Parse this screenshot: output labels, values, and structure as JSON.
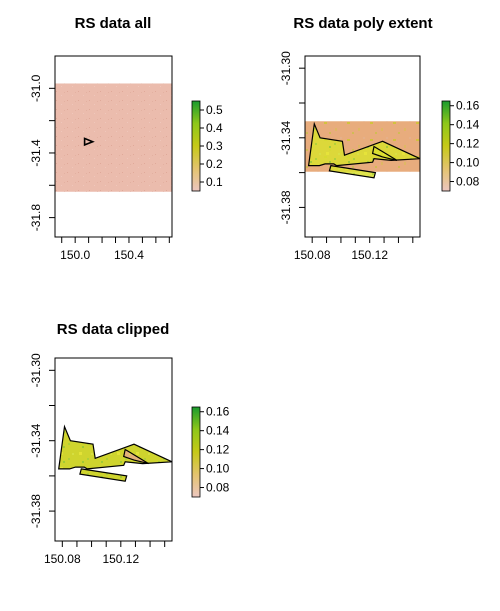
{
  "chart_data": [
    {
      "type": "heatmap",
      "title": "RS data all",
      "xlabel": "",
      "ylabel": "",
      "x_ticks": [
        "150.0",
        "150.4"
      ],
      "y_ticks": [
        "-31.0",
        "-31.4",
        "-31.8"
      ],
      "xlim": [
        149.85,
        150.72
      ],
      "ylim": [
        -31.92,
        -30.8
      ],
      "raster_extent": {
        "x": [
          149.85,
          150.72
        ],
        "y": [
          -31.64,
          -30.97
        ]
      },
      "polygon_outline": [
        [
          150.07,
          -31.31
        ],
        [
          150.07,
          -31.35
        ],
        [
          150.13,
          -31.33
        ]
      ],
      "legend": {
        "ticks": [
          "0.1",
          "0.2",
          "0.3",
          "0.4",
          "0.5"
        ],
        "range": [
          0.05,
          0.55
        ],
        "placement": "right",
        "colors": [
          "#ecc6c0",
          "#e3c36e",
          "#c6c918",
          "#8ec71a",
          "#1a9b2f"
        ]
      },
      "raster_color": "#ebbcad"
    },
    {
      "type": "heatmap",
      "title": "RS data poly extent",
      "xlabel": "",
      "ylabel": "",
      "x_ticks": [
        "150.08",
        "150.12"
      ],
      "y_ticks": [
        "-31.30",
        "-31.34",
        "-31.38"
      ],
      "xlim": [
        150.075,
        150.155
      ],
      "ylim": [
        -31.397,
        -31.293
      ],
      "raster_extent": {
        "x": [
          150.075,
          150.155
        ],
        "y": [
          -31.3595,
          -31.3305
        ]
      },
      "polygons": [
        [
          [
            150.0775,
            -31.356
          ],
          [
            150.0815,
            -31.332
          ],
          [
            150.0855,
            -31.34
          ],
          [
            150.101,
            -31.342
          ],
          [
            150.1025,
            -31.35
          ],
          [
            150.129,
            -31.342
          ],
          [
            150.155,
            -31.352
          ],
          [
            150.135,
            -31.353
          ],
          [
            150.123,
            -31.352
          ],
          [
            150.122,
            -31.354
          ],
          [
            150.097,
            -31.356
          ],
          [
            150.095,
            -31.355
          ],
          [
            150.089,
            -31.355
          ],
          [
            150.085,
            -31.356
          ]
        ],
        [
          [
            150.123,
            -31.345
          ],
          [
            150.139,
            -31.353
          ],
          [
            150.129,
            -31.351
          ],
          [
            150.122,
            -31.349
          ]
        ],
        [
          [
            150.093,
            -31.356
          ],
          [
            150.124,
            -31.36
          ],
          [
            150.123,
            -31.363
          ],
          [
            150.092,
            -31.359
          ]
        ]
      ],
      "legend": {
        "ticks": [
          "0.08",
          "0.10",
          "0.12",
          "0.14",
          "0.16"
        ],
        "range": [
          0.07,
          0.165
        ],
        "placement": "right",
        "colors": [
          "#ecc6c0",
          "#e3c36e",
          "#c6c918",
          "#8ec71a",
          "#1a9b2f"
        ]
      }
    },
    {
      "type": "heatmap",
      "title": "RS data clipped",
      "xlabel": "",
      "ylabel": "",
      "x_ticks": [
        "150.08",
        "150.12"
      ],
      "y_ticks": [
        "-31.30",
        "-31.34",
        "-31.38"
      ],
      "xlim": [
        150.075,
        150.155
      ],
      "ylim": [
        -31.397,
        -31.293
      ],
      "polygons": [
        [
          [
            150.0775,
            -31.356
          ],
          [
            150.0815,
            -31.332
          ],
          [
            150.0855,
            -31.34
          ],
          [
            150.101,
            -31.342
          ],
          [
            150.1025,
            -31.35
          ],
          [
            150.129,
            -31.342
          ],
          [
            150.155,
            -31.352
          ],
          [
            150.135,
            -31.353
          ],
          [
            150.123,
            -31.352
          ],
          [
            150.122,
            -31.354
          ],
          [
            150.097,
            -31.356
          ],
          [
            150.095,
            -31.355
          ],
          [
            150.089,
            -31.355
          ],
          [
            150.085,
            -31.356
          ]
        ],
        [
          [
            150.123,
            -31.345
          ],
          [
            150.139,
            -31.353
          ],
          [
            150.129,
            -31.351
          ],
          [
            150.122,
            -31.349
          ]
        ],
        [
          [
            150.093,
            -31.356
          ],
          [
            150.124,
            -31.36
          ],
          [
            150.123,
            -31.363
          ],
          [
            150.092,
            -31.359
          ]
        ]
      ],
      "legend": {
        "ticks": [
          "0.08",
          "0.10",
          "0.12",
          "0.14",
          "0.16"
        ],
        "range": [
          0.07,
          0.165
        ],
        "placement": "right",
        "colors": [
          "#ecc6c0",
          "#e3c36e",
          "#c6c918",
          "#8ec71a",
          "#1a9b2f"
        ]
      }
    }
  ]
}
